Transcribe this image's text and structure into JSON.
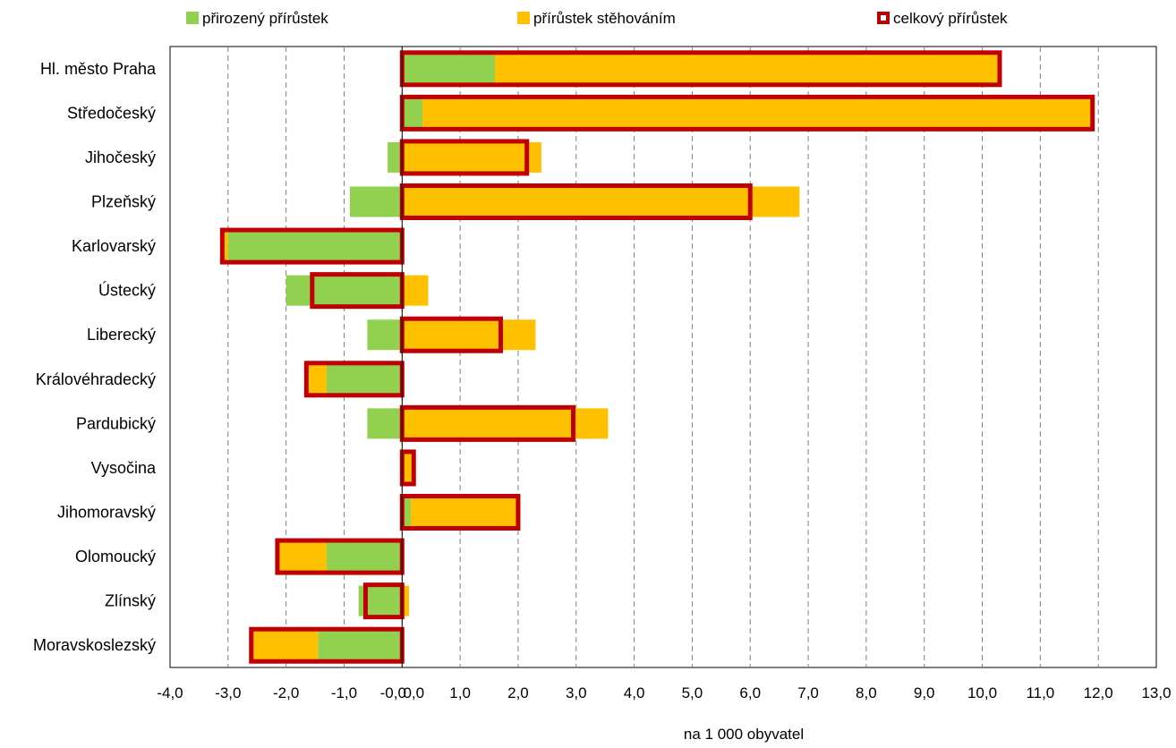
{
  "chart_data": {
    "type": "bar",
    "orientation": "horizontal",
    "xlabel": "na 1 000 obyvatel",
    "xlim": [
      -4,
      13
    ],
    "xticks": [
      "-4,0",
      "-3,0",
      "-2,0",
      "-1,0",
      "-0,0",
      "0,0",
      "1,0",
      "2,0",
      "3,0",
      "4,0",
      "5,0",
      "6,0",
      "7,0",
      "8,0",
      "9,0",
      "10,0",
      "11,0",
      "12,0",
      "13,0"
    ],
    "xtick_values": [
      -4,
      -3,
      -2,
      -1,
      -0.0001,
      0,
      1,
      2,
      3,
      4,
      5,
      6,
      7,
      8,
      9,
      10,
      11,
      12,
      13
    ],
    "grid": "vertical dashed",
    "legend_position": "top",
    "categories": [
      "Hl. město Praha",
      "Středočeský",
      "Jihočeský",
      "Plzeňský",
      "Karlovarský",
      "Ústecký",
      "Liberecký",
      "Královéhradecký",
      "Pardubický",
      "Vysočina",
      "Jihomoravský",
      "Olomoucký",
      "Zlínský",
      "Moravskoslezský"
    ],
    "series": [
      {
        "name": "přirozený přírůstek",
        "color": "#92d050",
        "values": [
          1.6,
          0.35,
          -0.25,
          -0.9,
          -3.0,
          -2.0,
          -0.6,
          -1.3,
          -0.6,
          0.0,
          0.15,
          -1.3,
          -0.75,
          -1.45
        ]
      },
      {
        "name": "přírůstek stěhováním",
        "color": "#ffc000",
        "values": [
          8.7,
          11.55,
          2.4,
          6.85,
          -0.1,
          0.45,
          2.3,
          -0.35,
          3.55,
          0.2,
          1.85,
          -0.85,
          0.12,
          -1.15
        ]
      },
      {
        "name": "celkový přírůstek",
        "color": "#c00000",
        "values": [
          10.3,
          11.9,
          2.15,
          6.0,
          -3.1,
          -1.55,
          1.7,
          -1.65,
          2.95,
          0.2,
          2.0,
          -2.15,
          -0.63,
          -2.6
        ]
      }
    ]
  }
}
